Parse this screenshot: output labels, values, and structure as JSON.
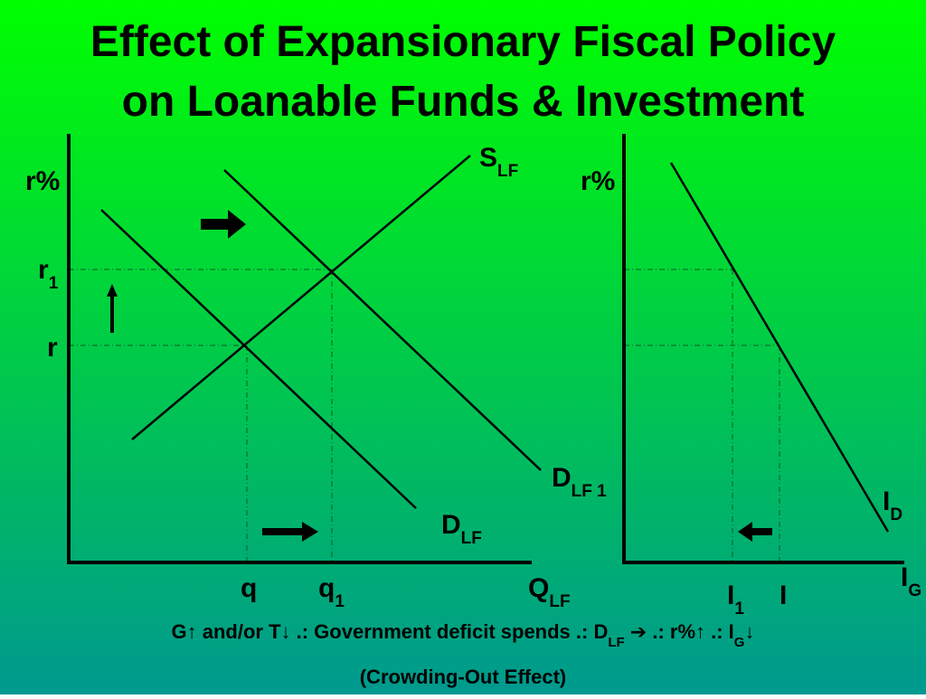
{
  "title": {
    "line1": "Effect of Expansionary Fiscal Policy",
    "line2": "on Loanable Funds & Investment"
  },
  "left_graph": {
    "y_axis": "r%",
    "supply": {
      "main": "S",
      "sub": "LF"
    },
    "r1": {
      "main": "r",
      "sub": "1"
    },
    "r": "r",
    "demand_new": {
      "main": "D",
      "sub": "LF 1"
    },
    "demand": {
      "main": "D",
      "sub": "LF"
    },
    "q": "q",
    "q1": {
      "main": "q",
      "sub": "1"
    },
    "x_axis": {
      "main": "Q",
      "sub": "LF"
    }
  },
  "right_graph": {
    "y_axis": "r%",
    "demand": {
      "main": "I",
      "sub": "D"
    },
    "x_axis": {
      "main": "I",
      "sub": "G"
    },
    "i1": {
      "main": "I",
      "sub": "1"
    },
    "i": "I"
  },
  "caption": {
    "segments": [
      "G↑ and/or T↓ .: Government deficit spends .: D",
      "LF",
      " ➔ .: r%↑ .: I",
      "G",
      "↓"
    ],
    "note": "(Crowding-Out Effect)"
  }
}
